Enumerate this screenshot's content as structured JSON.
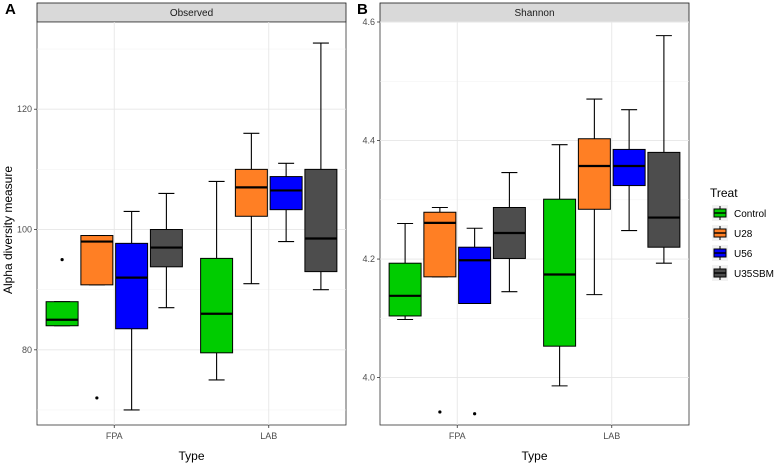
{
  "ylabel": "Alpha diversity measure",
  "legend": {
    "title": "Treat",
    "entries": [
      {
        "label": "Control",
        "color": "#00cc00"
      },
      {
        "label": "U28",
        "color": "#ff7f24"
      },
      {
        "label": "U56",
        "color": "#0000ff"
      },
      {
        "label": "U35SBM",
        "color": "#4d4d4d"
      }
    ]
  },
  "chart_data": [
    {
      "type": "boxplot",
      "panel_label": "A",
      "strip": "Observed",
      "xlabel": "Type",
      "categories": [
        "FPA",
        "LAB"
      ],
      "ylim": [
        67.5,
        134.5
      ],
      "yticks": [
        80,
        100,
        120
      ],
      "series": [
        {
          "name": "Control",
          "color": "#00cc00",
          "boxes": [
            {
              "min": 84,
              "q1": 84,
              "median": 85,
              "q3": 88,
              "max": 88,
              "outliers": [
                95
              ]
            },
            {
              "min": 75,
              "q1": 79.5,
              "median": 86,
              "q3": 95.2,
              "max": 108,
              "outliers": []
            }
          ]
        },
        {
          "name": "U28",
          "color": "#ff7f24",
          "boxes": [
            {
              "min": 90.8,
              "q1": 90.8,
              "median": 98,
              "q3": 99,
              "max": 99,
              "outliers": [
                72
              ]
            },
            {
              "min": 91,
              "q1": 102.2,
              "median": 107,
              "q3": 110,
              "max": 116,
              "outliers": []
            }
          ]
        },
        {
          "name": "U56",
          "color": "#0000ff",
          "boxes": [
            {
              "min": 70,
              "q1": 83.5,
              "median": 92,
              "q3": 97.7,
              "max": 103,
              "outliers": []
            },
            {
              "min": 98,
              "q1": 103.3,
              "median": 106.5,
              "q3": 108.8,
              "max": 111,
              "outliers": []
            }
          ]
        },
        {
          "name": "U35SBM",
          "color": "#4d4d4d",
          "boxes": [
            {
              "min": 87,
              "q1": 93.8,
              "median": 97,
              "q3": 100,
              "max": 106,
              "outliers": []
            },
            {
              "min": 90,
              "q1": 93,
              "median": 98.5,
              "q3": 110,
              "max": 131,
              "outliers": []
            }
          ]
        }
      ]
    },
    {
      "type": "boxplot",
      "panel_label": "B",
      "strip": "Shannon",
      "xlabel": "Type",
      "categories": [
        "FPA",
        "LAB"
      ],
      "ylim": [
        3.92,
        4.6
      ],
      "yticks": [
        4.0,
        4.2,
        4.4,
        4.6
      ],
      "yticklabels": [
        "4.0",
        "4.2",
        "4.4",
        "4.6"
      ],
      "series": [
        {
          "name": "Control",
          "color": "#00cc00",
          "boxes": [
            {
              "min": 4.098,
              "q1": 4.104,
              "median": 4.138,
              "q3": 4.193,
              "max": 4.26,
              "outliers": []
            },
            {
              "min": 3.986,
              "q1": 4.053,
              "median": 4.174,
              "q3": 4.301,
              "max": 4.393,
              "outliers": []
            }
          ]
        },
        {
          "name": "U28",
          "color": "#ff7f24",
          "boxes": [
            {
              "min": 4.17,
              "q1": 4.17,
              "median": 4.261,
              "q3": 4.279,
              "max": 4.287,
              "outliers": [
                3.942
              ]
            },
            {
              "min": 4.14,
              "q1": 4.284,
              "median": 4.357,
              "q3": 4.403,
              "max": 4.47,
              "outliers": []
            }
          ]
        },
        {
          "name": "U56",
          "color": "#0000ff",
          "boxes": [
            {
              "min": 4.125,
              "q1": 4.125,
              "median": 4.198,
              "q3": 4.22,
              "max": 4.252,
              "outliers": [
                3.939
              ]
            },
            {
              "min": 4.248,
              "q1": 4.324,
              "median": 4.357,
              "q3": 4.385,
              "max": 4.452,
              "outliers": []
            }
          ]
        },
        {
          "name": "U35SBM",
          "color": "#4d4d4d",
          "boxes": [
            {
              "min": 4.145,
              "q1": 4.201,
              "median": 4.244,
              "q3": 4.287,
              "max": 4.346,
              "outliers": []
            },
            {
              "min": 4.193,
              "q1": 4.22,
              "median": 4.27,
              "q3": 4.38,
              "max": 4.577,
              "outliers": []
            }
          ]
        }
      ]
    }
  ]
}
